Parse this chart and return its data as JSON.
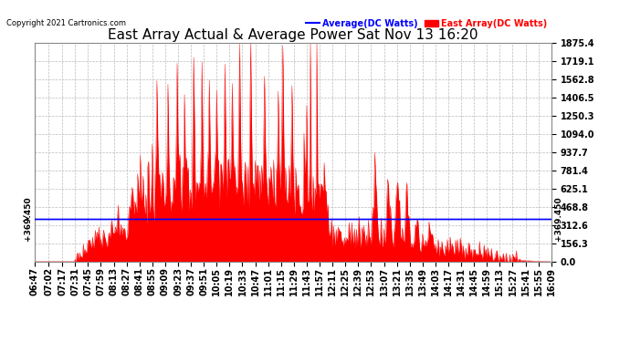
{
  "title": "East Array Actual & Average Power Sat Nov 13 16:20",
  "copyright": "Copyright 2021 Cartronics.com",
  "legend_avg": "Average(DC Watts)",
  "legend_east": "East Array(DC Watts)",
  "avg_color": "#0000ff",
  "east_color": "#ff0000",
  "avg_value": 369.45,
  "ymax": 1875.4,
  "ymin": 0.0,
  "yticks": [
    0.0,
    156.3,
    312.6,
    468.8,
    625.1,
    781.4,
    937.7,
    1094.0,
    1250.3,
    1406.5,
    1562.8,
    1719.1,
    1875.4
  ],
  "background_color": "#ffffff",
  "grid_color": "#aaaaaa",
  "title_fontsize": 11,
  "tick_fontsize": 7,
  "time_labels": [
    "06:47",
    "07:02",
    "07:17",
    "07:31",
    "07:45",
    "07:59",
    "08:13",
    "08:27",
    "08:41",
    "08:55",
    "09:09",
    "09:23",
    "09:37",
    "09:51",
    "10:05",
    "10:19",
    "10:33",
    "10:47",
    "11:01",
    "11:15",
    "11:29",
    "11:43",
    "11:57",
    "12:11",
    "12:25",
    "12:39",
    "12:53",
    "13:07",
    "13:21",
    "13:35",
    "13:49",
    "14:03",
    "14:17",
    "14:31",
    "14:45",
    "14:59",
    "15:13",
    "15:27",
    "15:41",
    "15:55",
    "16:09"
  ]
}
